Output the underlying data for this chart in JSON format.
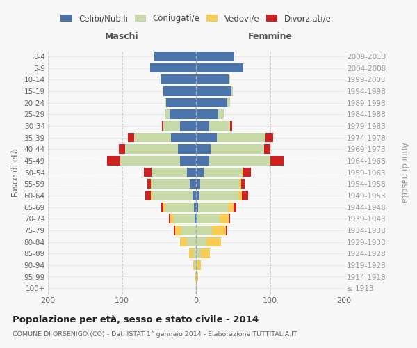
{
  "age_groups": [
    "100+",
    "95-99",
    "90-94",
    "85-89",
    "80-84",
    "75-79",
    "70-74",
    "65-69",
    "60-64",
    "55-59",
    "50-54",
    "45-49",
    "40-44",
    "35-39",
    "30-34",
    "25-29",
    "20-24",
    "15-19",
    "10-14",
    "5-9",
    "0-4"
  ],
  "birth_years": [
    "≤ 1913",
    "1914-1918",
    "1919-1923",
    "1924-1928",
    "1929-1933",
    "1934-1938",
    "1939-1943",
    "1944-1948",
    "1949-1953",
    "1954-1958",
    "1959-1963",
    "1964-1968",
    "1969-1973",
    "1974-1978",
    "1979-1983",
    "1984-1988",
    "1989-1993",
    "1994-1998",
    "1999-2003",
    "2004-2008",
    "2009-2013"
  ],
  "male_celibi": [
    0,
    0,
    0,
    0,
    0,
    0,
    2,
    3,
    5,
    8,
    12,
    22,
    24,
    34,
    22,
    36,
    40,
    44,
    48,
    62,
    56
  ],
  "male_coniugati": [
    0,
    0,
    2,
    4,
    12,
    20,
    28,
    38,
    54,
    52,
    48,
    80,
    72,
    50,
    22,
    5,
    2,
    0,
    0,
    0,
    0
  ],
  "male_vedovi": [
    0,
    1,
    2,
    5,
    10,
    8,
    5,
    3,
    2,
    1,
    0,
    0,
    0,
    0,
    0,
    0,
    0,
    0,
    0,
    0,
    0
  ],
  "male_divorziati": [
    0,
    0,
    0,
    0,
    0,
    2,
    2,
    3,
    8,
    5,
    10,
    18,
    8,
    8,
    2,
    0,
    0,
    0,
    0,
    0,
    0
  ],
  "female_nubili": [
    0,
    0,
    0,
    0,
    0,
    0,
    2,
    3,
    5,
    6,
    10,
    18,
    20,
    28,
    18,
    30,
    42,
    48,
    44,
    64,
    52
  ],
  "female_coniugate": [
    0,
    1,
    2,
    7,
    14,
    22,
    30,
    40,
    52,
    52,
    52,
    82,
    72,
    66,
    28,
    8,
    4,
    2,
    2,
    0,
    0
  ],
  "female_vedove": [
    1,
    2,
    5,
    12,
    20,
    18,
    12,
    8,
    5,
    3,
    2,
    0,
    0,
    0,
    0,
    0,
    0,
    0,
    0,
    0,
    0
  ],
  "female_divorziate": [
    0,
    0,
    0,
    0,
    0,
    2,
    2,
    3,
    8,
    5,
    10,
    18,
    8,
    10,
    3,
    0,
    0,
    0,
    0,
    0,
    0
  ],
  "colors_celibi": "#4b74aa",
  "colors_coniugati": "#c8d9a8",
  "colors_vedovi": "#f7cc55",
  "colors_divorziati": "#cc2222",
  "title": "Popolazione per età, sesso e stato civile - 2014",
  "subtitle": "COMUNE DI ORSENIGO (CO) - Dati ISTAT 1° gennaio 2014 - Elaborazione TUTTITALIA.IT",
  "label_maschi": "Maschi",
  "label_femmine": "Femmine",
  "ylabel_left": "Fasce di età",
  "ylabel_right": "Anni di nascita",
  "xlim": 200,
  "legend_labels": [
    "Celibi/Nubili",
    "Coniugati/e",
    "Vedovi/e",
    "Divorziati/e"
  ],
  "bg_color": "#f7f7f7",
  "grid_color": "#cccccc"
}
